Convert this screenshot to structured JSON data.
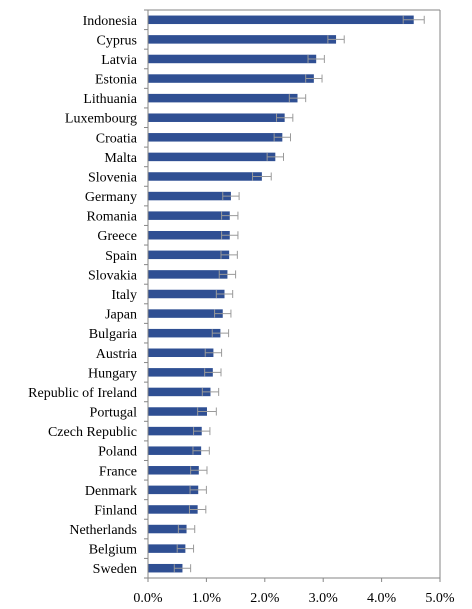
{
  "chart_data": {
    "type": "bar",
    "orientation": "horizontal",
    "categories": [
      "Indonesia",
      "Cyprus",
      "Latvia",
      "Estonia",
      "Lithuania",
      "Luxembourg",
      "Croatia",
      "Malta",
      "Slovenia",
      "Germany",
      "Romania",
      "Greece",
      "Spain",
      "Slovakia",
      "Italy",
      "Japan",
      "Bulgaria",
      "Austria",
      "Hungary",
      "Republic of Ireland",
      "Portugal",
      "Czech Republic",
      "Poland",
      "France",
      "Denmark",
      "Finland",
      "Netherlands",
      "Belgium",
      "Sweden"
    ],
    "values": [
      4.55,
      3.22,
      2.88,
      2.84,
      2.56,
      2.34,
      2.3,
      2.18,
      1.95,
      1.42,
      1.4,
      1.4,
      1.39,
      1.36,
      1.31,
      1.28,
      1.24,
      1.12,
      1.11,
      1.07,
      1.01,
      0.92,
      0.91,
      0.87,
      0.86,
      0.85,
      0.66,
      0.64,
      0.59
    ],
    "error": [
      0.18,
      0.14,
      0.14,
      0.14,
      0.14,
      0.14,
      0.14,
      0.14,
      0.16,
      0.14,
      0.14,
      0.14,
      0.14,
      0.14,
      0.14,
      0.14,
      0.14,
      0.14,
      0.14,
      0.14,
      0.16,
      0.14,
      0.14,
      0.14,
      0.14,
      0.14,
      0.14,
      0.14,
      0.14
    ],
    "xticks": [
      "0.0%",
      "1.0%",
      "2.0%",
      "3.0%",
      "4.0%",
      "5.0%"
    ],
    "xlim": [
      0,
      5
    ],
    "title": "",
    "xlabel": "",
    "ylabel": "",
    "grid": false,
    "legend": "none",
    "bar_color": "#2f4f93",
    "error_color": "#9a9a9a"
  }
}
